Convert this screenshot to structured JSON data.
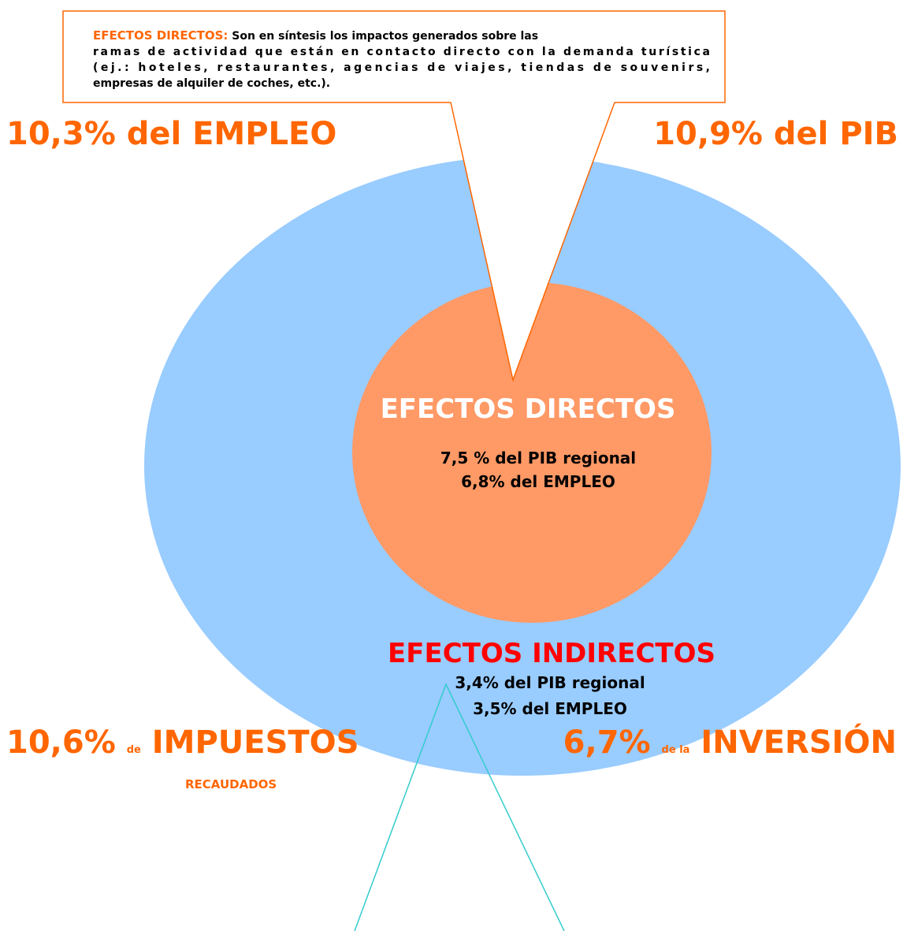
{
  "callout": {
    "label": "EFECTOS DIRECTOS:",
    "lines": [
      "Son en síntesis los impactos generados sobre las",
      "ramas de actividad que están en contacto directo con la demanda turística",
      "(ej.: hoteles, restaurantes, agencias de viajes, tiendas de souvenirs,",
      "empresas de alquiler de coches, etc.)."
    ]
  },
  "top_left": "10,3% del EMPLEO",
  "top_right": "10,9% del PIB",
  "direct": {
    "title": "EFECTOS DIRECTOS",
    "lines": [
      "7,5 % del PIB regional",
      "6,8% del EMPLEO"
    ]
  },
  "indirect": {
    "title": "EFECTOS INDIRECTOS",
    "lines": [
      "3,4% del PIB regional",
      "3,5% del EMPLEO"
    ]
  },
  "bottom_left": {
    "value": "10,6%",
    "connector": "de",
    "measure": "IMPUESTOS",
    "sub": "RECAUDADOS"
  },
  "bottom_right": {
    "value": "6,7%",
    "connector": "de la",
    "measure": "INVERSIÓN"
  }
}
